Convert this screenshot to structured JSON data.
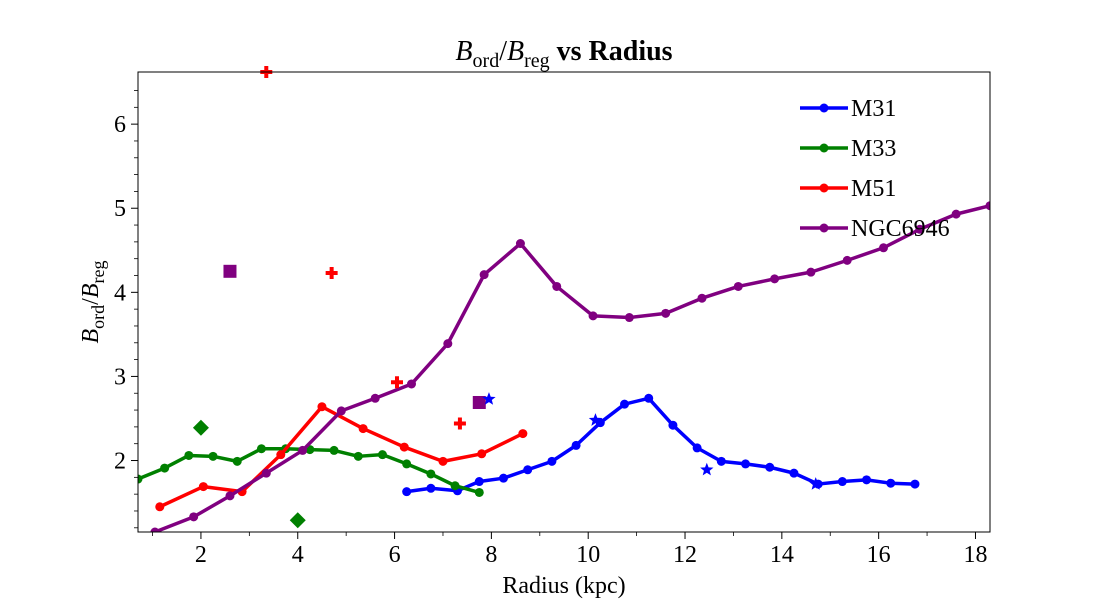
{
  "chart_data": {
    "type": "line",
    "title": {
      "b1": "B",
      "sub1": "ord",
      "slash": "/",
      "b2": "B",
      "sub2": "reg",
      "rest": " vs Radius"
    },
    "xlabel": "Radius (kpc)",
    "ylabel": {
      "b1": "B",
      "sub1": "ord",
      "slash": "/",
      "b2": "B",
      "sub2": "reg"
    },
    "xlim": [
      0.7,
      18.3
    ],
    "ylim": [
      1.15,
      6.62
    ],
    "xticks": [
      2,
      4,
      6,
      8,
      10,
      12,
      14,
      16,
      18
    ],
    "yticks": [
      2,
      3,
      4,
      5,
      6
    ],
    "legend_position": "top-right",
    "series": [
      {
        "name": "M31",
        "color": "#0000ff",
        "x": [
          6.25,
          6.75,
          7.3,
          7.75,
          8.25,
          8.75,
          9.25,
          9.75,
          10.25,
          10.75,
          11.25,
          11.75,
          12.25,
          12.75,
          13.25,
          13.75,
          14.25,
          14.75,
          15.25,
          15.75,
          16.25,
          16.75
        ],
        "y": [
          1.63,
          1.67,
          1.64,
          1.75,
          1.79,
          1.89,
          1.99,
          2.18,
          2.45,
          2.67,
          2.74,
          2.42,
          2.15,
          1.99,
          1.96,
          1.92,
          1.85,
          1.72,
          1.75,
          1.77,
          1.73,
          1.72
        ]
      },
      {
        "name": "M33",
        "color": "#008000",
        "x": [
          0.7,
          1.25,
          1.75,
          2.25,
          2.75,
          3.25,
          3.75,
          4.25,
          4.75,
          5.25,
          5.75,
          6.25,
          6.75,
          7.25,
          7.75
        ],
        "y": [
          1.78,
          1.91,
          2.06,
          2.05,
          1.99,
          2.14,
          2.14,
          2.13,
          2.12,
          2.05,
          2.07,
          1.96,
          1.84,
          1.7,
          1.62
        ]
      },
      {
        "name": "M51",
        "color": "#ff0000",
        "x": [
          1.15,
          2.05,
          2.85,
          3.65,
          4.5,
          5.35,
          6.2,
          7.0,
          7.8,
          8.65
        ],
        "y": [
          1.45,
          1.69,
          1.63,
          2.07,
          2.64,
          2.38,
          2.16,
          1.99,
          2.08,
          2.32
        ]
      },
      {
        "name": "NGC6946",
        "color": "#800080",
        "x": [
          1.05,
          1.85,
          2.6,
          3.35,
          4.1,
          4.9,
          5.6,
          6.35,
          7.1,
          7.85,
          8.6,
          9.35,
          10.1,
          10.85,
          11.6,
          12.35,
          13.1,
          13.85,
          14.6,
          15.35,
          16.1,
          16.85,
          17.6,
          18.3
        ],
        "y": [
          1.15,
          1.33,
          1.58,
          1.85,
          2.12,
          2.59,
          2.74,
          2.91,
          3.39,
          4.21,
          4.58,
          4.07,
          3.72,
          3.7,
          3.75,
          3.93,
          4.07,
          4.16,
          4.24,
          4.38,
          4.53,
          4.75,
          4.93,
          5.03
        ]
      }
    ],
    "markers": [
      {
        "shape": "plus",
        "color": "#ff0000",
        "x": 3.35,
        "y": 6.62
      },
      {
        "shape": "plus",
        "color": "#ff0000",
        "x": 4.7,
        "y": 4.23
      },
      {
        "shape": "plus",
        "color": "#ff0000",
        "x": 6.05,
        "y": 2.93
      },
      {
        "shape": "plus",
        "color": "#ff0000",
        "x": 7.35,
        "y": 2.44
      },
      {
        "shape": "square",
        "color": "#800080",
        "x": 2.6,
        "y": 4.25
      },
      {
        "shape": "square",
        "color": "#800080",
        "x": 7.75,
        "y": 2.69
      },
      {
        "shape": "diamond",
        "color": "#008000",
        "x": 2.0,
        "y": 2.39
      },
      {
        "shape": "diamond",
        "color": "#008000",
        "x": 4.0,
        "y": 1.29
      },
      {
        "shape": "star",
        "color": "#0000ff",
        "x": 7.95,
        "y": 2.73
      },
      {
        "shape": "star",
        "color": "#0000ff",
        "x": 10.15,
        "y": 2.48
      },
      {
        "shape": "star",
        "color": "#0000ff",
        "x": 12.45,
        "y": 1.89
      },
      {
        "shape": "star",
        "color": "#0000ff",
        "x": 14.7,
        "y": 1.72
      }
    ]
  }
}
